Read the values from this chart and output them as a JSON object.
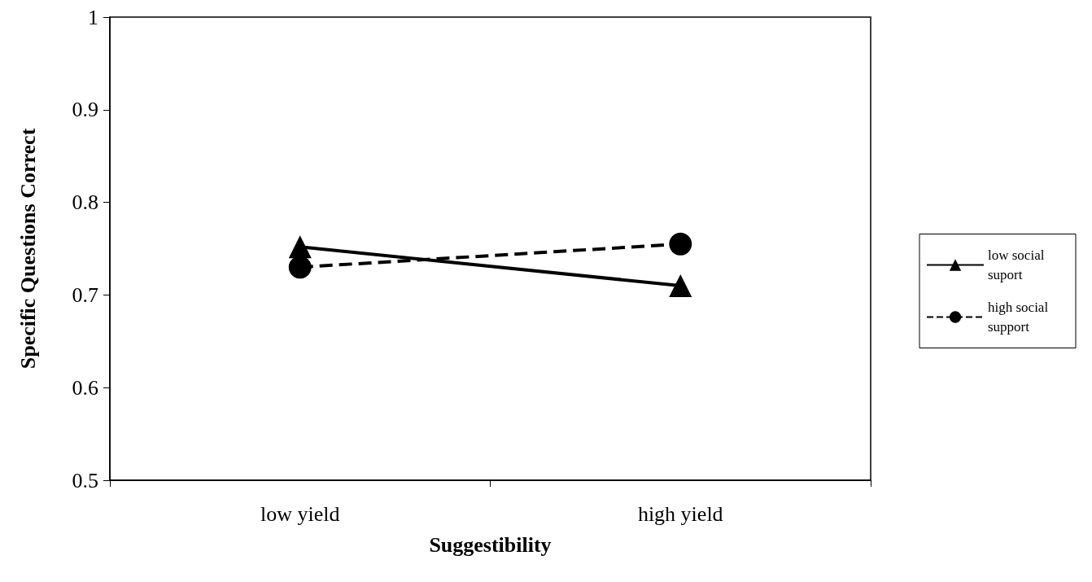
{
  "chart_data": {
    "type": "line",
    "xlabel": "Suggestibility",
    "ylabel": "Specific Questions Correct",
    "categories": [
      "low yield",
      "high yield"
    ],
    "series": [
      {
        "name": "low social suport",
        "color": "#000000",
        "values": [
          0.752,
          0.71
        ],
        "marker": "triangle",
        "line_style": "solid"
      },
      {
        "name": "high social support",
        "color": "#000000",
        "values": [
          0.73,
          0.755
        ],
        "marker": "circle",
        "line_style": "dashed"
      }
    ],
    "ylim": [
      0.5,
      1
    ],
    "yticks": [
      0.5,
      0.6,
      0.7,
      0.8,
      0.9,
      1
    ],
    "grid": false,
    "legend": "right"
  }
}
